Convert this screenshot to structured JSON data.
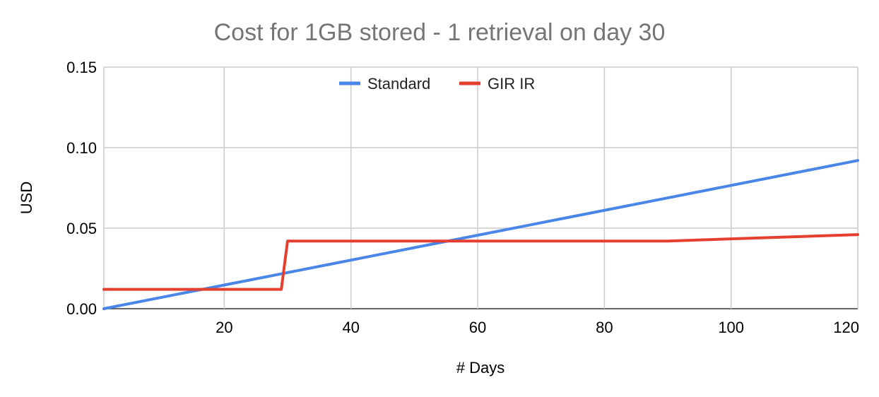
{
  "chart_data": {
    "type": "line",
    "title": "Cost for 1GB stored - 1 retrieval on day 30",
    "xlabel": "# Days",
    "ylabel": "USD",
    "xlim": [
      1,
      120
    ],
    "ylim": [
      0,
      0.15
    ],
    "xticks": [
      20,
      40,
      60,
      80,
      100,
      120
    ],
    "xtick_labels": [
      "20",
      "40",
      "60",
      "80",
      "100",
      "120"
    ],
    "yticks": [
      0,
      0.05,
      0.1,
      0.15
    ],
    "ytick_labels": [
      "0.00",
      "0.05",
      "0.10",
      "0.15"
    ],
    "grid": true,
    "legend_position": "top",
    "series": [
      {
        "name": "Standard",
        "color": "#4a86e8",
        "x": [
          1,
          120
        ],
        "y": [
          0.0,
          0.092
        ]
      },
      {
        "name": "GIR IR",
        "color": "#e53f2f",
        "x": [
          1,
          29,
          30,
          90,
          120
        ],
        "y": [
          0.012,
          0.012,
          0.042,
          0.042,
          0.046
        ]
      }
    ]
  }
}
